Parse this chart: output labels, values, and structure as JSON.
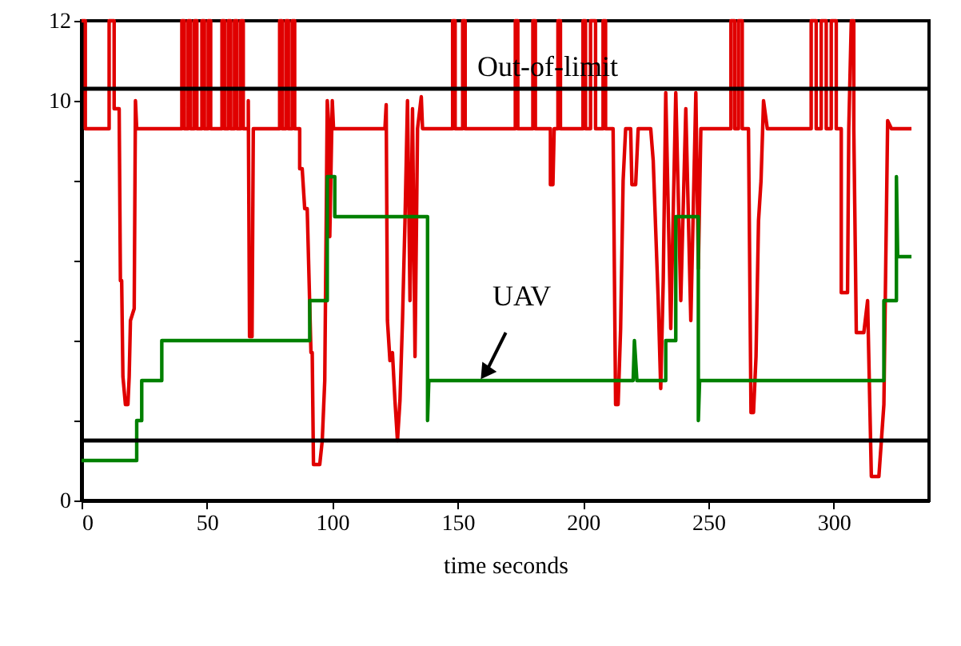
{
  "chart_data": {
    "type": "line",
    "xlabel": "time seconds",
    "xlim": [
      0,
      338
    ],
    "xticks": [
      0,
      50,
      100,
      150,
      200,
      250,
      300
    ],
    "ylim": [
      0,
      12
    ],
    "yticks": [
      0,
      {
        "value": 2,
        "label": null
      },
      {
        "value": 4,
        "label": null
      },
      {
        "value": 6,
        "label": null
      },
      {
        "value": 8,
        "label": null
      },
      10,
      12
    ],
    "grid": false,
    "line_style": "solid",
    "marker": "none",
    "series": [
      {
        "color": "#e00000",
        "x": [
          0,
          1.5,
          1.5,
          11,
          11,
          13,
          13,
          15,
          15.5,
          16,
          16.5,
          17.5,
          18.5,
          19,
          19.5,
          21,
          21.5,
          22,
          40,
          40,
          41,
          41,
          42.5,
          42.5,
          43.5,
          43.5,
          45,
          45,
          46,
          46,
          48,
          48,
          49,
          49,
          50.5,
          50.5,
          51.5,
          51.5,
          56,
          56,
          57,
          57,
          58.5,
          58.5,
          59.5,
          59.5,
          61,
          61,
          62,
          62,
          63.5,
          63.5,
          64.5,
          64.5,
          66.5,
          66.5,
          67,
          68,
          68.5,
          79,
          79,
          80,
          80,
          81.5,
          81.5,
          82.5,
          82.5,
          84,
          84,
          85,
          85,
          87,
          87,
          88,
          89,
          90,
          91.5,
          92,
          92.5,
          95,
          96,
          97,
          98,
          98.5,
          99,
          100,
          100.5,
          121,
          121.5,
          122,
          123,
          124,
          125,
          126,
          127,
          128,
          129,
          130,
          131,
          132,
          133,
          134,
          135.5,
          136,
          148,
          148,
          149,
          149,
          152,
          152,
          153,
          153,
          173,
          173,
          174,
          174,
          180,
          180,
          181,
          181,
          187,
          187,
          188,
          188.5,
          190,
          190,
          191,
          191,
          200,
          200,
          201,
          201,
          203,
          203,
          205,
          205,
          208,
          208,
          209,
          209,
          212,
          213,
          214,
          215,
          216,
          217,
          219,
          219.5,
          221,
          222,
          227,
          228,
          230,
          231,
          232,
          233,
          235,
          237,
          239,
          241,
          243,
          245,
          246,
          247,
          259,
          259,
          260.5,
          260.5,
          262,
          262,
          263.5,
          263.5,
          266,
          267,
          268,
          269,
          270,
          271,
          272,
          273.5,
          291,
          291,
          293,
          293,
          295,
          295,
          297,
          297,
          299,
          299,
          301,
          301,
          303,
          303,
          305.5,
          306,
          307,
          308,
          308,
          309,
          312,
          313.5,
          315,
          318,
          320,
          321.5,
          323,
          331
        ],
        "values": [
          12,
          12,
          9.3,
          9.3,
          12,
          12,
          9.8,
          9.8,
          5.5,
          5.5,
          3.1,
          2.4,
          2.4,
          3.1,
          4.5,
          4.8,
          10.0,
          9.3,
          9.3,
          12,
          12,
          9.3,
          9.3,
          12,
          12,
          9.3,
          9.3,
          12,
          12,
          9.3,
          9.3,
          12,
          12,
          9.3,
          9.3,
          12,
          12,
          9.3,
          9.3,
          12,
          12,
          9.3,
          9.3,
          12,
          12,
          9.3,
          9.3,
          12,
          12,
          9.3,
          9.3,
          12,
          12,
          9.3,
          9.3,
          10.0,
          4.1,
          4.1,
          9.3,
          9.3,
          12,
          12,
          9.3,
          9.3,
          12,
          12,
          9.3,
          9.3,
          12,
          12,
          9.3,
          9.3,
          8.3,
          8.3,
          7.3,
          7.3,
          3.7,
          3.7,
          0.9,
          0.9,
          1.5,
          3.0,
          10.0,
          9.5,
          6.6,
          10.0,
          9.3,
          9.3,
          9.9,
          4.5,
          3.5,
          3.7,
          2.5,
          1.5,
          2.5,
          4.5,
          7.0,
          10.0,
          5.0,
          9.8,
          3.6,
          9.3,
          10.1,
          9.3,
          9.3,
          12,
          12,
          9.3,
          9.3,
          12,
          12,
          9.3,
          9.3,
          12,
          12,
          9.3,
          9.3,
          12,
          12,
          9.3,
          9.3,
          7.9,
          7.9,
          9.3,
          9.3,
          12,
          12,
          9.3,
          9.3,
          12,
          12,
          9.3,
          9.3,
          12,
          12,
          9.3,
          9.3,
          12,
          12,
          9.3,
          9.3,
          2.4,
          2.4,
          4.3,
          8.0,
          9.3,
          9.3,
          7.9,
          7.9,
          9.3,
          9.3,
          8.5,
          5.0,
          2.8,
          5.5,
          10.2,
          4.3,
          10.2,
          5.0,
          9.8,
          4.5,
          10.2,
          5.8,
          9.3,
          9.3,
          12,
          12,
          9.3,
          9.3,
          12,
          12,
          9.3,
          9.3,
          2.2,
          2.2,
          3.6,
          7.0,
          8.0,
          10.0,
          9.3,
          9.3,
          12,
          12,
          9.3,
          9.3,
          12,
          12,
          9.3,
          9.3,
          12,
          12,
          9.3,
          9.3,
          5.2,
          5.2,
          9.3,
          12,
          12,
          9.3,
          4.2,
          4.2,
          5.0,
          0.6,
          0.6,
          2.4,
          9.5,
          9.3,
          9.3
        ]
      },
      {
        "color": "#008000",
        "x": [
          0,
          22,
          22,
          24,
          24,
          32,
          32,
          91,
          91,
          98,
          98,
          101,
          101,
          138,
          138,
          138.5,
          220,
          220.5,
          221.5,
          233,
          233,
          237,
          237,
          246,
          246,
          246.5,
          320,
          320,
          325,
          325,
          325.5,
          331
        ],
        "values": [
          1.0,
          1.0,
          2.0,
          2.0,
          3.0,
          3.0,
          4.0,
          4.0,
          5.0,
          5.0,
          8.1,
          8.1,
          7.1,
          7.1,
          2.0,
          3.0,
          3.0,
          4.0,
          3.0,
          3.0,
          4.0,
          4.0,
          7.1,
          7.1,
          2.0,
          3.0,
          3.0,
          5.0,
          5.0,
          8.1,
          6.1,
          6.1
        ]
      }
    ],
    "ref_lines": [
      {
        "axis": "y",
        "value": 10.3,
        "label": "Out-of-limit",
        "color": "#000000"
      },
      {
        "axis": "y",
        "value": 1.5,
        "color": "#000000"
      }
    ],
    "annotations": [
      {
        "text": "UAV",
        "x": 159,
        "y": 3.0
      }
    ]
  }
}
